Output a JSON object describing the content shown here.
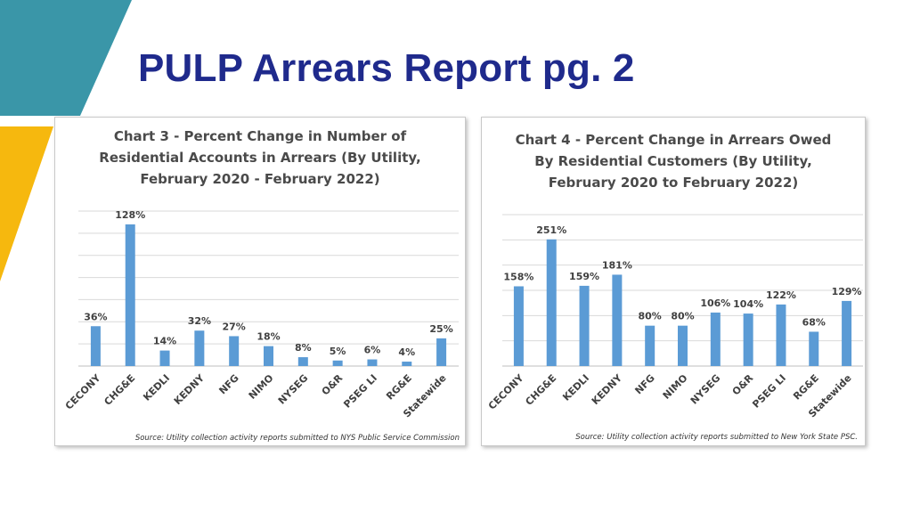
{
  "slide": {
    "title": "PULP Arrears Report pg. 2",
    "colors": {
      "title": "#1f2a8c",
      "teal": "#3a96a8",
      "yellow": "#f6b80e",
      "bar": "#5b9bd5"
    }
  },
  "chart_data": [
    {
      "type": "bar",
      "title_lines": [
        "Chart 3 - Percent Change in Number of",
        "Residential Accounts in Arrears (By Utility,",
        "February 2020 - February 2022)"
      ],
      "categories": [
        "CECONY",
        "CHG&E",
        "KEDLI",
        "KEDNY",
        "NFG",
        "NIMO",
        "NYSEG",
        "O&R",
        "PSEG LI",
        "RG&E",
        "Statewide"
      ],
      "values": [
        36,
        128,
        14,
        32,
        27,
        18,
        8,
        5,
        6,
        4,
        25
      ],
      "labels": [
        "36%",
        "128%",
        "14%",
        "32%",
        "27%",
        "18%",
        "8%",
        "5%",
        "6%",
        "4%",
        "25%"
      ],
      "ylim": [
        0,
        140
      ],
      "grid": true,
      "source": "Source: Utility collection activity reports submitted to NYS Public Service Commission",
      "bar_color": "#5b9bd5"
    },
    {
      "type": "bar",
      "title_lines": [
        "Chart 4 - Percent Change in Arrears Owed",
        "By Residential Customers (By Utility,",
        "February 2020 to February 2022)"
      ],
      "categories": [
        "CECONY",
        "CHG&E",
        "KEDLI",
        "KEDNY",
        "NFG",
        "NIMO",
        "NYSEG",
        "O&R",
        "PSEG LI",
        "RG&E",
        "Statewide"
      ],
      "values": [
        158,
        251,
        159,
        181,
        80,
        80,
        106,
        104,
        122,
        68,
        129
      ],
      "labels": [
        "158%",
        "251%",
        "159%",
        "181%",
        "80%",
        "80%",
        "106%",
        "104%",
        "122%",
        "68%",
        "129%"
      ],
      "ylim": [
        0,
        300
      ],
      "grid": true,
      "source": "Source: Utility collection activity reports submitted to New York State PSC.",
      "bar_color": "#5b9bd5"
    }
  ]
}
